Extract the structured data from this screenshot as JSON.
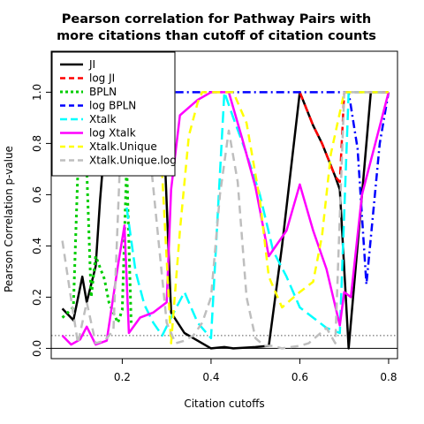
{
  "chart_data": {
    "type": "line",
    "title": [
      "Pearson correlation for Pathway Pairs with",
      "more citations than cutoff of citation counts"
    ],
    "xlabel": "Citation cutoffs",
    "ylabel": "Pearson Correlation p-value",
    "xlim": [
      0.04,
      0.82
    ],
    "ylim": [
      -0.04,
      1.16
    ],
    "xticks": [
      0.2,
      0.4,
      0.6,
      0.8
    ],
    "xtick_labels": [
      "0.2",
      "0.4",
      "0.6",
      "0.8"
    ],
    "yticks": [
      0.0,
      0.2,
      0.4,
      0.6,
      0.8,
      1.0
    ],
    "ytick_labels": [
      "0.0",
      "0.2",
      "0.4",
      "0.6",
      "0.8",
      "1.0"
    ],
    "reference_lines": [
      {
        "y": 0.05,
        "style": "dotted",
        "color": "#555555"
      },
      {
        "y": 0.0,
        "style": "solid",
        "color": "#000000"
      }
    ],
    "legend_position": "top-left",
    "series": [
      {
        "name": "JI",
        "color": "#000000",
        "dash": "solid",
        "width": 2.5,
        "x": [
          0.065,
          0.09,
          0.11,
          0.12,
          0.14,
          0.15,
          0.17,
          0.19,
          0.21,
          0.23,
          0.25,
          0.27,
          0.29,
          0.31,
          0.34,
          0.37,
          0.4,
          0.43,
          0.45,
          0.48,
          0.5,
          0.53,
          0.56,
          0.6,
          0.63,
          0.65,
          0.68,
          0.69,
          0.71,
          0.74,
          0.76,
          0.8
        ],
        "y": [
          0.155,
          0.11,
          0.28,
          0.18,
          0.32,
          0.58,
          1.0,
          1.0,
          1.0,
          1.0,
          1.0,
          1.0,
          1.0,
          0.14,
          0.06,
          0.03,
          0.0,
          0.005,
          0.0,
          0.003,
          0.005,
          0.01,
          0.4,
          1.0,
          0.87,
          0.8,
          0.67,
          0.62,
          0.0,
          0.6,
          1.0,
          1.0
        ]
      },
      {
        "name": "log JI",
        "color": "#ff0000",
        "dash": "dashed",
        "width": 2.5,
        "x": [
          0.6,
          0.63,
          0.65,
          0.68,
          0.69,
          0.7,
          0.8
        ],
        "y": [
          1.0,
          0.87,
          0.8,
          0.67,
          0.65,
          1.0,
          1.0
        ]
      },
      {
        "name": "BPLN",
        "color": "#00cd00",
        "dash": "dotted",
        "width": 3,
        "x": [
          0.065,
          0.09,
          0.1,
          0.11,
          0.12,
          0.13,
          0.14,
          0.16,
          0.17,
          0.19,
          0.2,
          0.21,
          0.22
        ],
        "y": [
          0.12,
          0.16,
          0.7,
          0.98,
          0.7,
          0.2,
          0.36,
          0.27,
          0.18,
          0.1,
          0.15,
          0.72,
          0.1
        ]
      },
      {
        "name": "log BPLN",
        "color": "#0000ff",
        "dash": "dashdot",
        "width": 2.5,
        "x": [
          0.32,
          0.35,
          0.4,
          0.5,
          0.6,
          0.7,
          0.71,
          0.73,
          0.75,
          0.78,
          0.8
        ],
        "y": [
          1.0,
          1.0,
          1.0,
          1.0,
          1.0,
          1.0,
          1.0,
          0.78,
          0.25,
          0.8,
          1.0
        ]
      },
      {
        "name": "Xtalk",
        "color": "#00ffff",
        "dash": "longdash",
        "width": 2.5,
        "x": [
          0.21,
          0.23,
          0.25,
          0.27,
          0.29,
          0.31,
          0.34,
          0.37,
          0.4,
          0.43,
          0.45,
          0.48,
          0.51,
          0.54,
          0.57,
          0.6,
          0.63,
          0.66,
          0.69,
          0.71,
          0.8
        ],
        "y": [
          0.55,
          0.3,
          0.17,
          0.1,
          0.05,
          0.12,
          0.22,
          0.1,
          0.04,
          1.0,
          0.9,
          0.76,
          0.6,
          0.38,
          0.28,
          0.16,
          0.12,
          0.08,
          0.06,
          1.0,
          1.0
        ]
      },
      {
        "name": "log Xtalk",
        "color": "#ff00ff",
        "dash": "solid",
        "width": 2.5,
        "x": [
          0.065,
          0.085,
          0.105,
          0.12,
          0.14,
          0.165,
          0.19,
          0.205,
          0.215,
          0.24,
          0.27,
          0.3,
          0.31,
          0.33,
          0.37,
          0.4,
          0.44,
          0.47,
          0.5,
          0.53,
          0.57,
          0.6,
          0.63,
          0.66,
          0.69,
          0.7,
          0.715,
          0.74,
          0.8
        ],
        "y": [
          0.05,
          0.015,
          0.035,
          0.085,
          0.015,
          0.03,
          0.32,
          0.48,
          0.06,
          0.12,
          0.14,
          0.18,
          0.62,
          0.91,
          0.97,
          1.0,
          1.0,
          0.82,
          0.63,
          0.36,
          0.46,
          0.64,
          0.46,
          0.31,
          0.09,
          0.22,
          0.2,
          0.6,
          1.0
        ]
      },
      {
        "name": "Xtalk.Unique",
        "color": "#ffff00",
        "dash": "dashed",
        "width": 2.5,
        "x": [
          0.2,
          0.24,
          0.26,
          0.28,
          0.29,
          0.31,
          0.33,
          0.35,
          0.37,
          0.38,
          0.4,
          0.45,
          0.48,
          0.51,
          0.53,
          0.56,
          0.6,
          0.63,
          0.65,
          0.67,
          0.7,
          0.72,
          0.8
        ],
        "y": [
          1.0,
          1.0,
          1.0,
          0.88,
          0.68,
          0.02,
          0.46,
          0.83,
          0.96,
          1.0,
          1.0,
          1.0,
          0.88,
          0.58,
          0.28,
          0.16,
          0.22,
          0.26,
          0.44,
          0.76,
          1.0,
          1.0,
          1.0
        ]
      },
      {
        "name": "Xtalk.Unique.log",
        "color": "#bebebe",
        "dash": "dashed",
        "width": 2.5,
        "x": [
          0.065,
          0.085,
          0.1,
          0.12,
          0.14,
          0.16,
          0.18,
          0.2,
          0.22,
          0.24,
          0.26,
          0.28,
          0.3,
          0.32,
          0.34,
          0.36,
          0.38,
          0.4,
          0.42,
          0.44,
          0.46,
          0.48,
          0.5,
          0.52,
          0.54,
          0.56,
          0.58,
          0.6,
          0.62,
          0.64,
          0.66,
          0.68,
          0.7,
          0.8
        ],
        "y": [
          0.42,
          0.19,
          0.02,
          0.18,
          0.02,
          0.03,
          0.07,
          0.95,
          1.0,
          1.0,
          0.8,
          0.45,
          0.1,
          0.02,
          0.03,
          0.05,
          0.1,
          0.2,
          0.6,
          0.85,
          0.65,
          0.2,
          0.04,
          0.01,
          0.01,
          0.0,
          0.005,
          0.01,
          0.02,
          0.05,
          0.08,
          0.02,
          1.0,
          1.0
        ]
      }
    ]
  }
}
